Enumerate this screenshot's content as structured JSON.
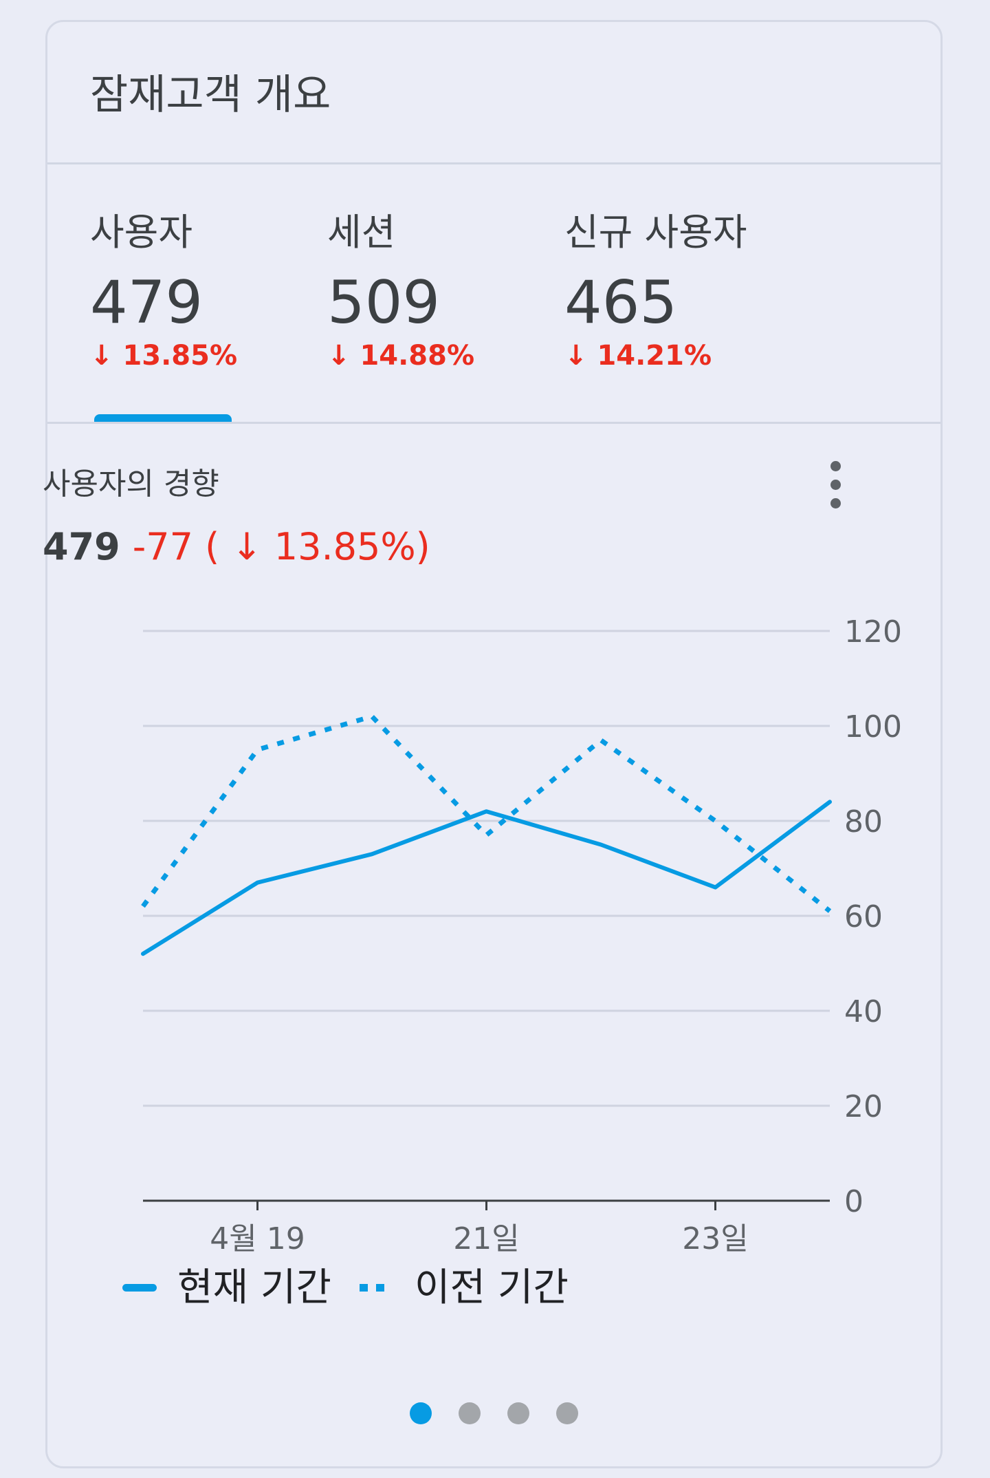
{
  "card": {
    "title": "잠재고객 개요"
  },
  "metrics": [
    {
      "label": "사용자",
      "value": "479",
      "change": "↓ 13.85%"
    },
    {
      "label": "세션",
      "value": "509",
      "change": "↓ 14.88%"
    },
    {
      "label": "신규 사용자",
      "value": "465",
      "change": "↓ 14.21%"
    }
  ],
  "selected_metric_index": 0,
  "trend": {
    "title": "사용자의 경향",
    "value": "479",
    "delta": "-77 ( ↓ 13.85%)"
  },
  "chart_data": {
    "type": "line",
    "x_ticks": [
      "4월 19",
      "21일",
      "23일"
    ],
    "x_tick_indices": [
      1,
      3,
      5
    ],
    "ylim": [
      0,
      120
    ],
    "yticks": [
      0,
      20,
      40,
      60,
      80,
      100,
      120
    ],
    "y_axis_position": "right",
    "grid": true,
    "legend_position": "bottom-left",
    "series": [
      {
        "name": "현재 기간",
        "style": "solid",
        "values": [
          52,
          67,
          73,
          82,
          75,
          66,
          84
        ]
      },
      {
        "name": "이전 기간",
        "style": "dotted",
        "values": [
          62,
          95,
          102,
          77,
          97,
          80,
          61
        ]
      }
    ],
    "color": "#079be3"
  },
  "pager": {
    "count": 4,
    "active_index": 0
  },
  "colors": {
    "accent": "#079be3",
    "negative": "#ea2d1f",
    "text": "#3c4043"
  }
}
